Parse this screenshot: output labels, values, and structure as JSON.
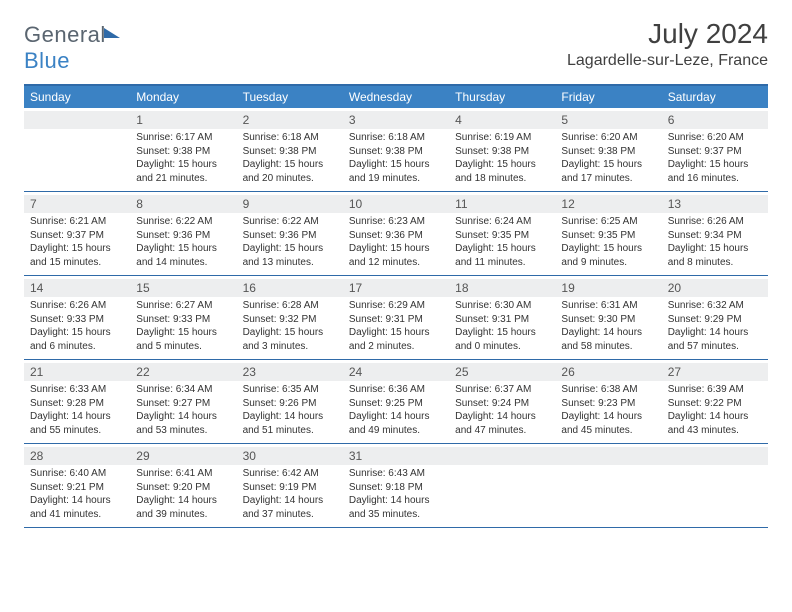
{
  "logo": {
    "left": "General",
    "right": "Blue"
  },
  "title": "July 2024",
  "location": "Lagardelle-sur-Leze, France",
  "colors": {
    "header_bg": "#3b82c4",
    "border": "#2f6aa8",
    "daynum_bg": "#edeeef",
    "text": "#333333",
    "title_text": "#404040"
  },
  "weekdays": [
    "Sunday",
    "Monday",
    "Tuesday",
    "Wednesday",
    "Thursday",
    "Friday",
    "Saturday"
  ],
  "weeks": [
    [
      {
        "n": "",
        "lines": []
      },
      {
        "n": "1",
        "lines": [
          "Sunrise: 6:17 AM",
          "Sunset: 9:38 PM",
          "Daylight: 15 hours",
          "and 21 minutes."
        ]
      },
      {
        "n": "2",
        "lines": [
          "Sunrise: 6:18 AM",
          "Sunset: 9:38 PM",
          "Daylight: 15 hours",
          "and 20 minutes."
        ]
      },
      {
        "n": "3",
        "lines": [
          "Sunrise: 6:18 AM",
          "Sunset: 9:38 PM",
          "Daylight: 15 hours",
          "and 19 minutes."
        ]
      },
      {
        "n": "4",
        "lines": [
          "Sunrise: 6:19 AM",
          "Sunset: 9:38 PM",
          "Daylight: 15 hours",
          "and 18 minutes."
        ]
      },
      {
        "n": "5",
        "lines": [
          "Sunrise: 6:20 AM",
          "Sunset: 9:38 PM",
          "Daylight: 15 hours",
          "and 17 minutes."
        ]
      },
      {
        "n": "6",
        "lines": [
          "Sunrise: 6:20 AM",
          "Sunset: 9:37 PM",
          "Daylight: 15 hours",
          "and 16 minutes."
        ]
      }
    ],
    [
      {
        "n": "7",
        "lines": [
          "Sunrise: 6:21 AM",
          "Sunset: 9:37 PM",
          "Daylight: 15 hours",
          "and 15 minutes."
        ]
      },
      {
        "n": "8",
        "lines": [
          "Sunrise: 6:22 AM",
          "Sunset: 9:36 PM",
          "Daylight: 15 hours",
          "and 14 minutes."
        ]
      },
      {
        "n": "9",
        "lines": [
          "Sunrise: 6:22 AM",
          "Sunset: 9:36 PM",
          "Daylight: 15 hours",
          "and 13 minutes."
        ]
      },
      {
        "n": "10",
        "lines": [
          "Sunrise: 6:23 AM",
          "Sunset: 9:36 PM",
          "Daylight: 15 hours",
          "and 12 minutes."
        ]
      },
      {
        "n": "11",
        "lines": [
          "Sunrise: 6:24 AM",
          "Sunset: 9:35 PM",
          "Daylight: 15 hours",
          "and 11 minutes."
        ]
      },
      {
        "n": "12",
        "lines": [
          "Sunrise: 6:25 AM",
          "Sunset: 9:35 PM",
          "Daylight: 15 hours",
          "and 9 minutes."
        ]
      },
      {
        "n": "13",
        "lines": [
          "Sunrise: 6:26 AM",
          "Sunset: 9:34 PM",
          "Daylight: 15 hours",
          "and 8 minutes."
        ]
      }
    ],
    [
      {
        "n": "14",
        "lines": [
          "Sunrise: 6:26 AM",
          "Sunset: 9:33 PM",
          "Daylight: 15 hours",
          "and 6 minutes."
        ]
      },
      {
        "n": "15",
        "lines": [
          "Sunrise: 6:27 AM",
          "Sunset: 9:33 PM",
          "Daylight: 15 hours",
          "and 5 minutes."
        ]
      },
      {
        "n": "16",
        "lines": [
          "Sunrise: 6:28 AM",
          "Sunset: 9:32 PM",
          "Daylight: 15 hours",
          "and 3 minutes."
        ]
      },
      {
        "n": "17",
        "lines": [
          "Sunrise: 6:29 AM",
          "Sunset: 9:31 PM",
          "Daylight: 15 hours",
          "and 2 minutes."
        ]
      },
      {
        "n": "18",
        "lines": [
          "Sunrise: 6:30 AM",
          "Sunset: 9:31 PM",
          "Daylight: 15 hours",
          "and 0 minutes."
        ]
      },
      {
        "n": "19",
        "lines": [
          "Sunrise: 6:31 AM",
          "Sunset: 9:30 PM",
          "Daylight: 14 hours",
          "and 58 minutes."
        ]
      },
      {
        "n": "20",
        "lines": [
          "Sunrise: 6:32 AM",
          "Sunset: 9:29 PM",
          "Daylight: 14 hours",
          "and 57 minutes."
        ]
      }
    ],
    [
      {
        "n": "21",
        "lines": [
          "Sunrise: 6:33 AM",
          "Sunset: 9:28 PM",
          "Daylight: 14 hours",
          "and 55 minutes."
        ]
      },
      {
        "n": "22",
        "lines": [
          "Sunrise: 6:34 AM",
          "Sunset: 9:27 PM",
          "Daylight: 14 hours",
          "and 53 minutes."
        ]
      },
      {
        "n": "23",
        "lines": [
          "Sunrise: 6:35 AM",
          "Sunset: 9:26 PM",
          "Daylight: 14 hours",
          "and 51 minutes."
        ]
      },
      {
        "n": "24",
        "lines": [
          "Sunrise: 6:36 AM",
          "Sunset: 9:25 PM",
          "Daylight: 14 hours",
          "and 49 minutes."
        ]
      },
      {
        "n": "25",
        "lines": [
          "Sunrise: 6:37 AM",
          "Sunset: 9:24 PM",
          "Daylight: 14 hours",
          "and 47 minutes."
        ]
      },
      {
        "n": "26",
        "lines": [
          "Sunrise: 6:38 AM",
          "Sunset: 9:23 PM",
          "Daylight: 14 hours",
          "and 45 minutes."
        ]
      },
      {
        "n": "27",
        "lines": [
          "Sunrise: 6:39 AM",
          "Sunset: 9:22 PM",
          "Daylight: 14 hours",
          "and 43 minutes."
        ]
      }
    ],
    [
      {
        "n": "28",
        "lines": [
          "Sunrise: 6:40 AM",
          "Sunset: 9:21 PM",
          "Daylight: 14 hours",
          "and 41 minutes."
        ]
      },
      {
        "n": "29",
        "lines": [
          "Sunrise: 6:41 AM",
          "Sunset: 9:20 PM",
          "Daylight: 14 hours",
          "and 39 minutes."
        ]
      },
      {
        "n": "30",
        "lines": [
          "Sunrise: 6:42 AM",
          "Sunset: 9:19 PM",
          "Daylight: 14 hours",
          "and 37 minutes."
        ]
      },
      {
        "n": "31",
        "lines": [
          "Sunrise: 6:43 AM",
          "Sunset: 9:18 PM",
          "Daylight: 14 hours",
          "and 35 minutes."
        ]
      },
      {
        "n": "",
        "lines": []
      },
      {
        "n": "",
        "lines": []
      },
      {
        "n": "",
        "lines": []
      }
    ]
  ]
}
